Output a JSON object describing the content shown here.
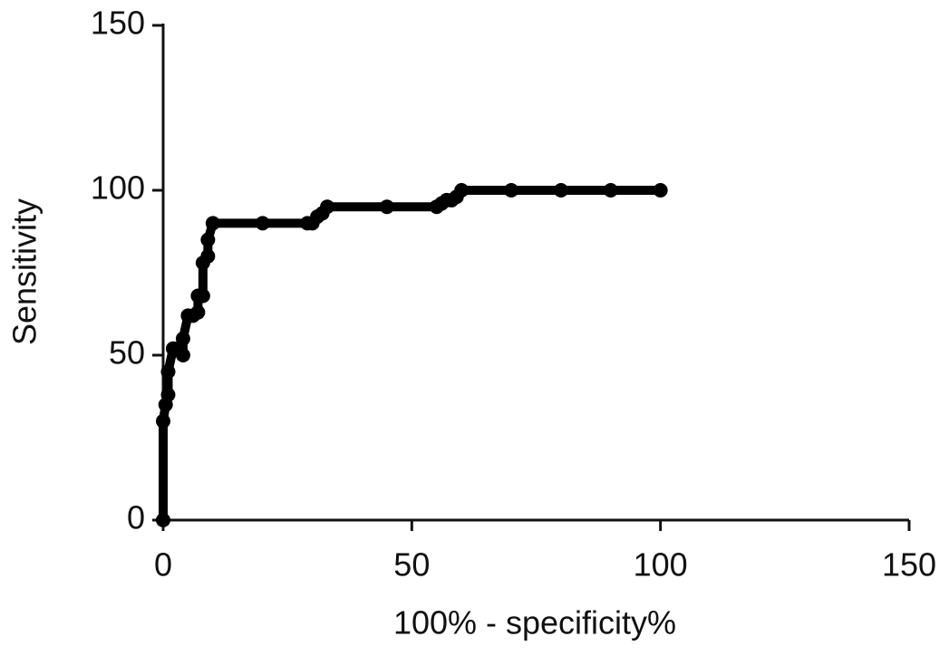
{
  "chart_data": {
    "type": "line",
    "x_label": "100% - specificity%",
    "y_label": "Sensitivity",
    "series": [
      {
        "color": "#000000",
        "x": [
          0,
          0,
          0.5,
          1,
          1,
          2,
          3,
          4,
          4,
          5,
          6,
          7,
          7,
          8,
          8,
          9,
          9,
          10,
          20,
          29,
          30,
          31,
          32,
          33,
          45,
          55,
          56,
          57,
          58,
          59,
          60,
          70,
          80,
          90,
          100
        ],
        "values": [
          0,
          30,
          35,
          38,
          45,
          52,
          52,
          50,
          55,
          62,
          62,
          63,
          68,
          68,
          78,
          80,
          85,
          90,
          90,
          90,
          90,
          92,
          93,
          95,
          95,
          95,
          96,
          97,
          97,
          98,
          100,
          100,
          100,
          100,
          100
        ]
      }
    ],
    "xlim": [
      0,
      150
    ],
    "ylim": [
      0,
      150
    ],
    "xticks": [
      0,
      50,
      100,
      150
    ],
    "yticks": [
      0,
      50,
      100,
      150
    ],
    "grid": false
  }
}
